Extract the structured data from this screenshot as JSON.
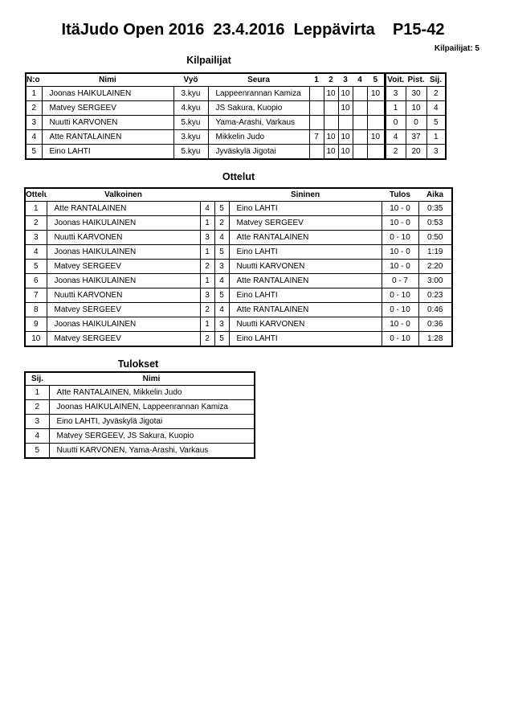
{
  "title": "ItäJudo Open 2016  23.4.2016  Leppävirta    P15-42",
  "competitor_count": "Kilpailijat: 5",
  "competitors": {
    "heading": "Kilpailijat",
    "headers": [
      "N:o",
      "Nimi",
      "Vyö",
      "Seura",
      "1",
      "2",
      "3",
      "4",
      "5",
      "Voit.",
      "Pist.",
      "Sij."
    ],
    "rows": [
      [
        "1",
        "Joonas HAIKULAINEN",
        "3.kyu",
        "Lappeenrannan Kamiza",
        "",
        "10",
        "10",
        "",
        "10",
        "3",
        "30",
        "2"
      ],
      [
        "2",
        "Matvey SERGEEV",
        "4.kyu",
        "JS Sakura, Kuopio",
        "",
        "",
        "10",
        "",
        "",
        "1",
        "10",
        "4"
      ],
      [
        "3",
        "Nuutti KARVONEN",
        "5.kyu",
        "Yama-Arashi, Varkaus",
        "",
        "",
        "",
        "",
        "",
        "0",
        "0",
        "5"
      ],
      [
        "4",
        "Atte RANTALAINEN",
        "3.kyu",
        "Mikkelin Judo",
        "7",
        "10",
        "10",
        "",
        "10",
        "4",
        "37",
        "1"
      ],
      [
        "5",
        "Eino LAHTI",
        "5.kyu",
        "Jyväskylä Jigotai",
        "",
        "10",
        "10",
        "",
        "",
        "2",
        "20",
        "3"
      ]
    ]
  },
  "matches": {
    "heading": "Ottelut",
    "headers": [
      "Ottelu",
      "Valkoinen",
      "",
      "",
      "Sininen",
      "Tulos",
      "Aika"
    ],
    "rows": [
      [
        "1",
        "Atte RANTALAINEN",
        "4",
        "5",
        "Eino LAHTI",
        "10 - 0",
        "0:35"
      ],
      [
        "2",
        "Joonas HAIKULAINEN",
        "1",
        "2",
        "Matvey SERGEEV",
        "10 - 0",
        "0:53"
      ],
      [
        "3",
        "Nuutti KARVONEN",
        "3",
        "4",
        "Atte RANTALAINEN",
        "0 - 10",
        "0:50"
      ],
      [
        "4",
        "Joonas HAIKULAINEN",
        "1",
        "5",
        "Eino LAHTI",
        "10 - 0",
        "1:19"
      ],
      [
        "5",
        "Matvey SERGEEV",
        "2",
        "3",
        "Nuutti KARVONEN",
        "10 - 0",
        "2:20"
      ],
      [
        "6",
        "Joonas HAIKULAINEN",
        "1",
        "4",
        "Atte RANTALAINEN",
        "0 - 7",
        "3:00"
      ],
      [
        "7",
        "Nuutti KARVONEN",
        "3",
        "5",
        "Eino LAHTI",
        "0 - 10",
        "0:23"
      ],
      [
        "8",
        "Matvey SERGEEV",
        "2",
        "4",
        "Atte RANTALAINEN",
        "0 - 10",
        "0:46"
      ],
      [
        "9",
        "Joonas HAIKULAINEN",
        "1",
        "3",
        "Nuutti KARVONEN",
        "10 - 0",
        "0:36"
      ],
      [
        "10",
        "Matvey SERGEEV",
        "2",
        "5",
        "Eino LAHTI",
        "0 - 10",
        "1:28"
      ]
    ]
  },
  "results": {
    "heading": "Tulokset",
    "headers": [
      "Sij.",
      "Nimi"
    ],
    "rows": [
      [
        "1",
        "Atte RANTALAINEN, Mikkelin Judo"
      ],
      [
        "2",
        "Joonas HAIKULAINEN, Lappeenrannan Kamiza"
      ],
      [
        "3",
        "Eino LAHTI, Jyväskylä Jigotai"
      ],
      [
        "4",
        "Matvey SERGEEV, JS Sakura, Kuopio"
      ],
      [
        "5",
        "Nuutti KARVONEN, Yama-Arashi, Varkaus"
      ]
    ]
  }
}
